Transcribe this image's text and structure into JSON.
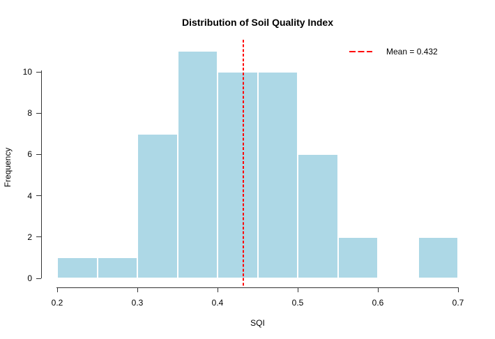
{
  "chart_data": {
    "type": "bar",
    "subtype": "histogram",
    "title": "Distribution of Soil Quality Index",
    "xlabel": "SQI",
    "ylabel": "Frequency",
    "bin_edges": [
      0.2,
      0.25,
      0.3,
      0.35,
      0.4,
      0.45,
      0.5,
      0.55,
      0.6,
      0.65,
      0.7
    ],
    "frequencies": [
      1,
      1,
      7,
      11,
      10,
      10,
      6,
      2,
      0,
      2
    ],
    "xlim": [
      0.2,
      0.7
    ],
    "ylim": [
      0,
      10
    ],
    "xticks": [
      {
        "value": 0.2,
        "label": "0.2"
      },
      {
        "value": 0.3,
        "label": "0.3"
      },
      {
        "value": 0.4,
        "label": "0.4"
      },
      {
        "value": 0.5,
        "label": "0.5"
      },
      {
        "value": 0.6,
        "label": "0.6"
      },
      {
        "value": 0.7,
        "label": "0.7"
      }
    ],
    "yticks": [
      {
        "value": 0,
        "label": "0"
      },
      {
        "value": 2,
        "label": "2"
      },
      {
        "value": 4,
        "label": "4"
      },
      {
        "value": 6,
        "label": "6"
      },
      {
        "value": 8,
        "label": "8"
      },
      {
        "value": 10,
        "label": "10"
      }
    ],
    "grid": false,
    "legend_position": "top-right",
    "mean_line": {
      "value": 0.432,
      "color": "#ff0000",
      "style": "dashed",
      "width": 2
    },
    "legend": {
      "label": "Mean = 0.432",
      "sample_color": "#ff0000",
      "sample_style": "dashed"
    },
    "colors": {
      "bar_fill": "#add8e6",
      "bar_border": "#ffffff",
      "axis": "#333333",
      "text": "#000000"
    }
  }
}
